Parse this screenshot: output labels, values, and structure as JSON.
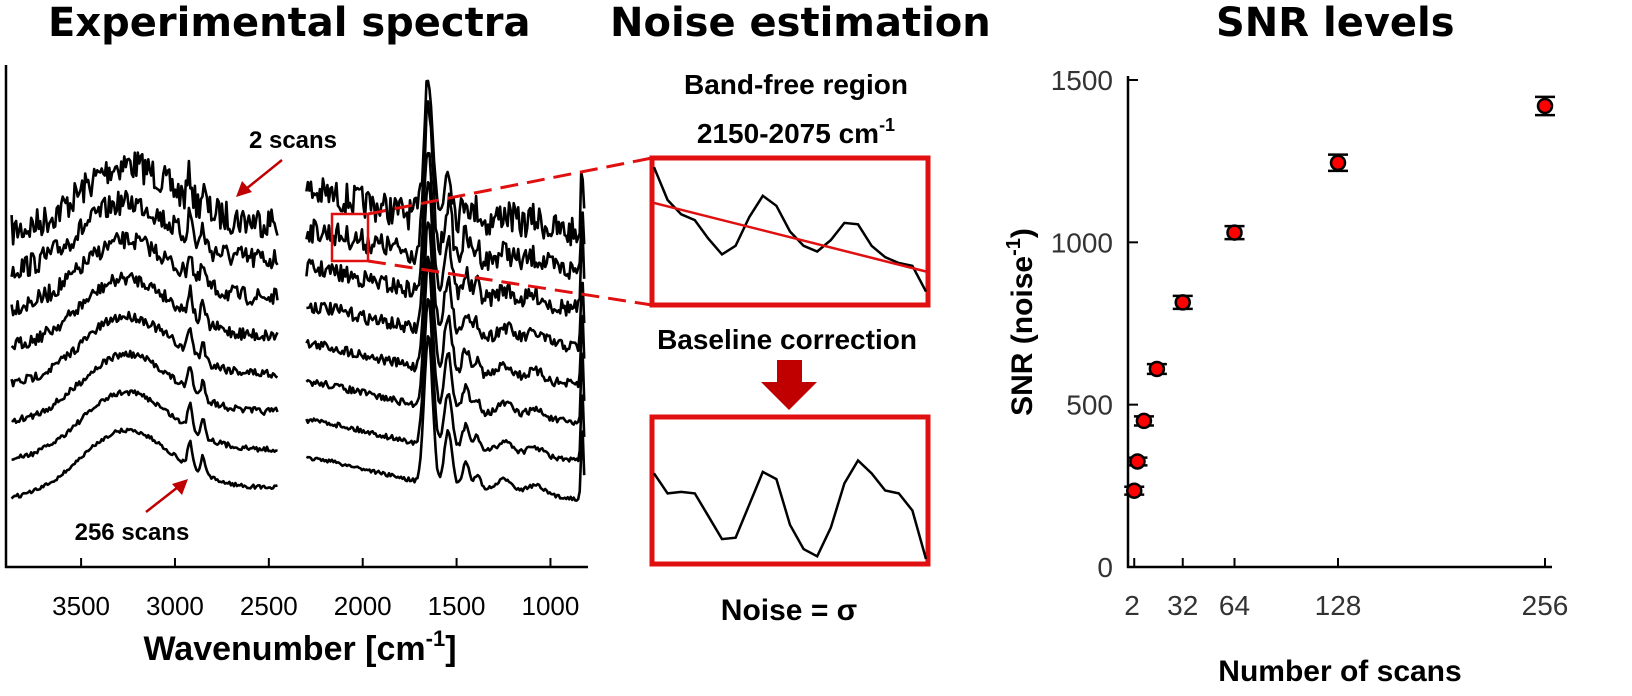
{
  "panels": {
    "left_title": "Experimental spectra",
    "middle_title": "Noise estimation",
    "right_title": "SNR levels"
  },
  "colors": {
    "accent": "#e01010",
    "arrow": "#c00000",
    "line": "#000000",
    "marker": "#ff0000"
  },
  "chart_data": [
    {
      "type": "line",
      "title": "Experimental spectra",
      "xlabel": "Wavenumber [cm-1]",
      "xlabel_main": "Wavenumber [cm",
      "xlabel_sup": "-1",
      "xlabel_end": "]",
      "x_reversed": true,
      "xlim": [
        3900,
        800
      ],
      "xticks": [
        3500,
        3000,
        2500,
        2000,
        1500,
        1000
      ],
      "xtick_labels": [
        "3500",
        "3000",
        "2500",
        "2000",
        "1500",
        "1000"
      ],
      "series_count": 8,
      "series_note": "stacked spectra, offset vertically",
      "gap_region": [
        2450,
        2300
      ],
      "annotations": {
        "top": "2 scans",
        "bottom": "256 scans",
        "zoom_window": [
          2150,
          2075
        ]
      }
    },
    {
      "type": "line",
      "title": "Noise estimation",
      "band_region_label": "Band-free region",
      "band_range_main": "2150-2075 cm",
      "band_range_sup": "-1",
      "step_label": "Baseline correction",
      "result_label": "Noise = σ",
      "raw_segment": [
        0.95,
        0.72,
        0.62,
        0.58,
        0.45,
        0.34,
        0.4,
        0.6,
        0.75,
        0.68,
        0.5,
        0.4,
        0.36,
        0.44,
        0.56,
        0.55,
        0.4,
        0.32,
        0.28,
        0.26,
        0.08
      ],
      "baseline_fit": [
        0.7,
        0.22
      ],
      "corrected_segment": [
        0.62,
        0.48,
        0.49,
        0.48,
        0.32,
        0.16,
        0.17,
        0.4,
        0.63,
        0.58,
        0.26,
        0.09,
        0.04,
        0.24,
        0.55,
        0.71,
        0.62,
        0.5,
        0.48,
        0.36,
        0.02
      ]
    },
    {
      "type": "scatter",
      "title": "SNR levels",
      "xlabel": "Number of scans",
      "ylabel": "SNR (noise-1)",
      "ylabel_main": "SNR (noise",
      "ylabel_sup": "-1",
      "ylabel_end": ")",
      "xlim": [
        0,
        256
      ],
      "ylim": [
        0,
        1500
      ],
      "xticks": [
        2,
        32,
        64,
        128,
        256
      ],
      "xtick_labels": [
        "2",
        "32",
        "64",
        "128",
        "256"
      ],
      "yticks": [
        0,
        500,
        1000,
        1500
      ],
      "ytick_labels": [
        "0",
        "500",
        "1000",
        "1500"
      ],
      "x": [
        2,
        4,
        8,
        16,
        32,
        64,
        128,
        256
      ],
      "y": [
        235,
        325,
        450,
        610,
        815,
        1030,
        1245,
        1420
      ],
      "error": [
        12,
        12,
        14,
        15,
        20,
        20,
        25,
        28
      ]
    }
  ]
}
